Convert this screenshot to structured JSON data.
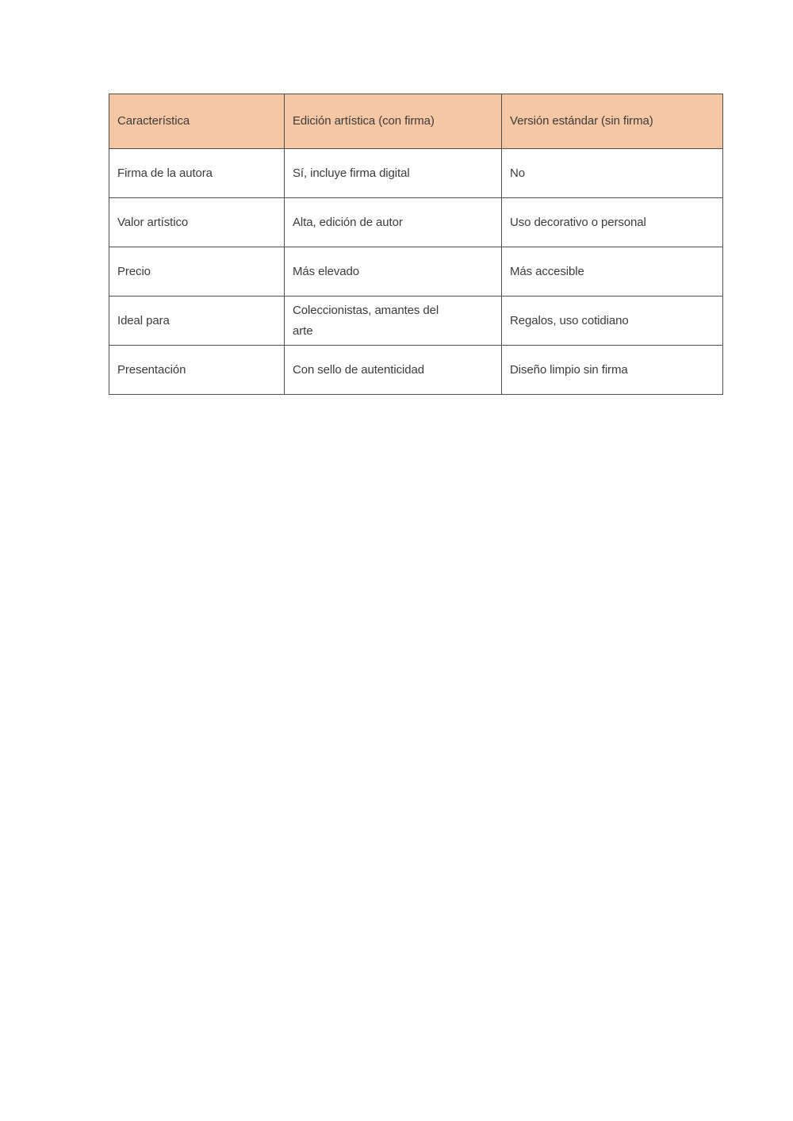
{
  "page": {
    "background_color": "#ffffff"
  },
  "table": {
    "header_bg_color": "#F6C7A5",
    "border_color": "#4e4e4e",
    "text_color": "#3b3b3b",
    "columns": [
      "Característica",
      "Edición artística (con firma)",
      "Versión estándar (sin firma)"
    ],
    "rows": [
      {
        "feature": "Firma de la autora",
        "artistic": "Sí, incluye firma digital",
        "standard": "No"
      },
      {
        "feature": "Valor artístico",
        "artistic": "Alta, edición de autor",
        "standard": "Uso decorativo o personal"
      },
      {
        "feature": "Precio",
        "artistic": "Más elevado",
        "standard": "Más accesible"
      },
      {
        "feature": "Ideal para",
        "artistic": "Coleccionistas, amantes del\narte",
        "standard": "Regalos, uso cotidiano"
      },
      {
        "feature": "Presentación",
        "artistic": "Con sello de autenticidad",
        "standard": "Diseño limpio sin firma"
      }
    ]
  }
}
